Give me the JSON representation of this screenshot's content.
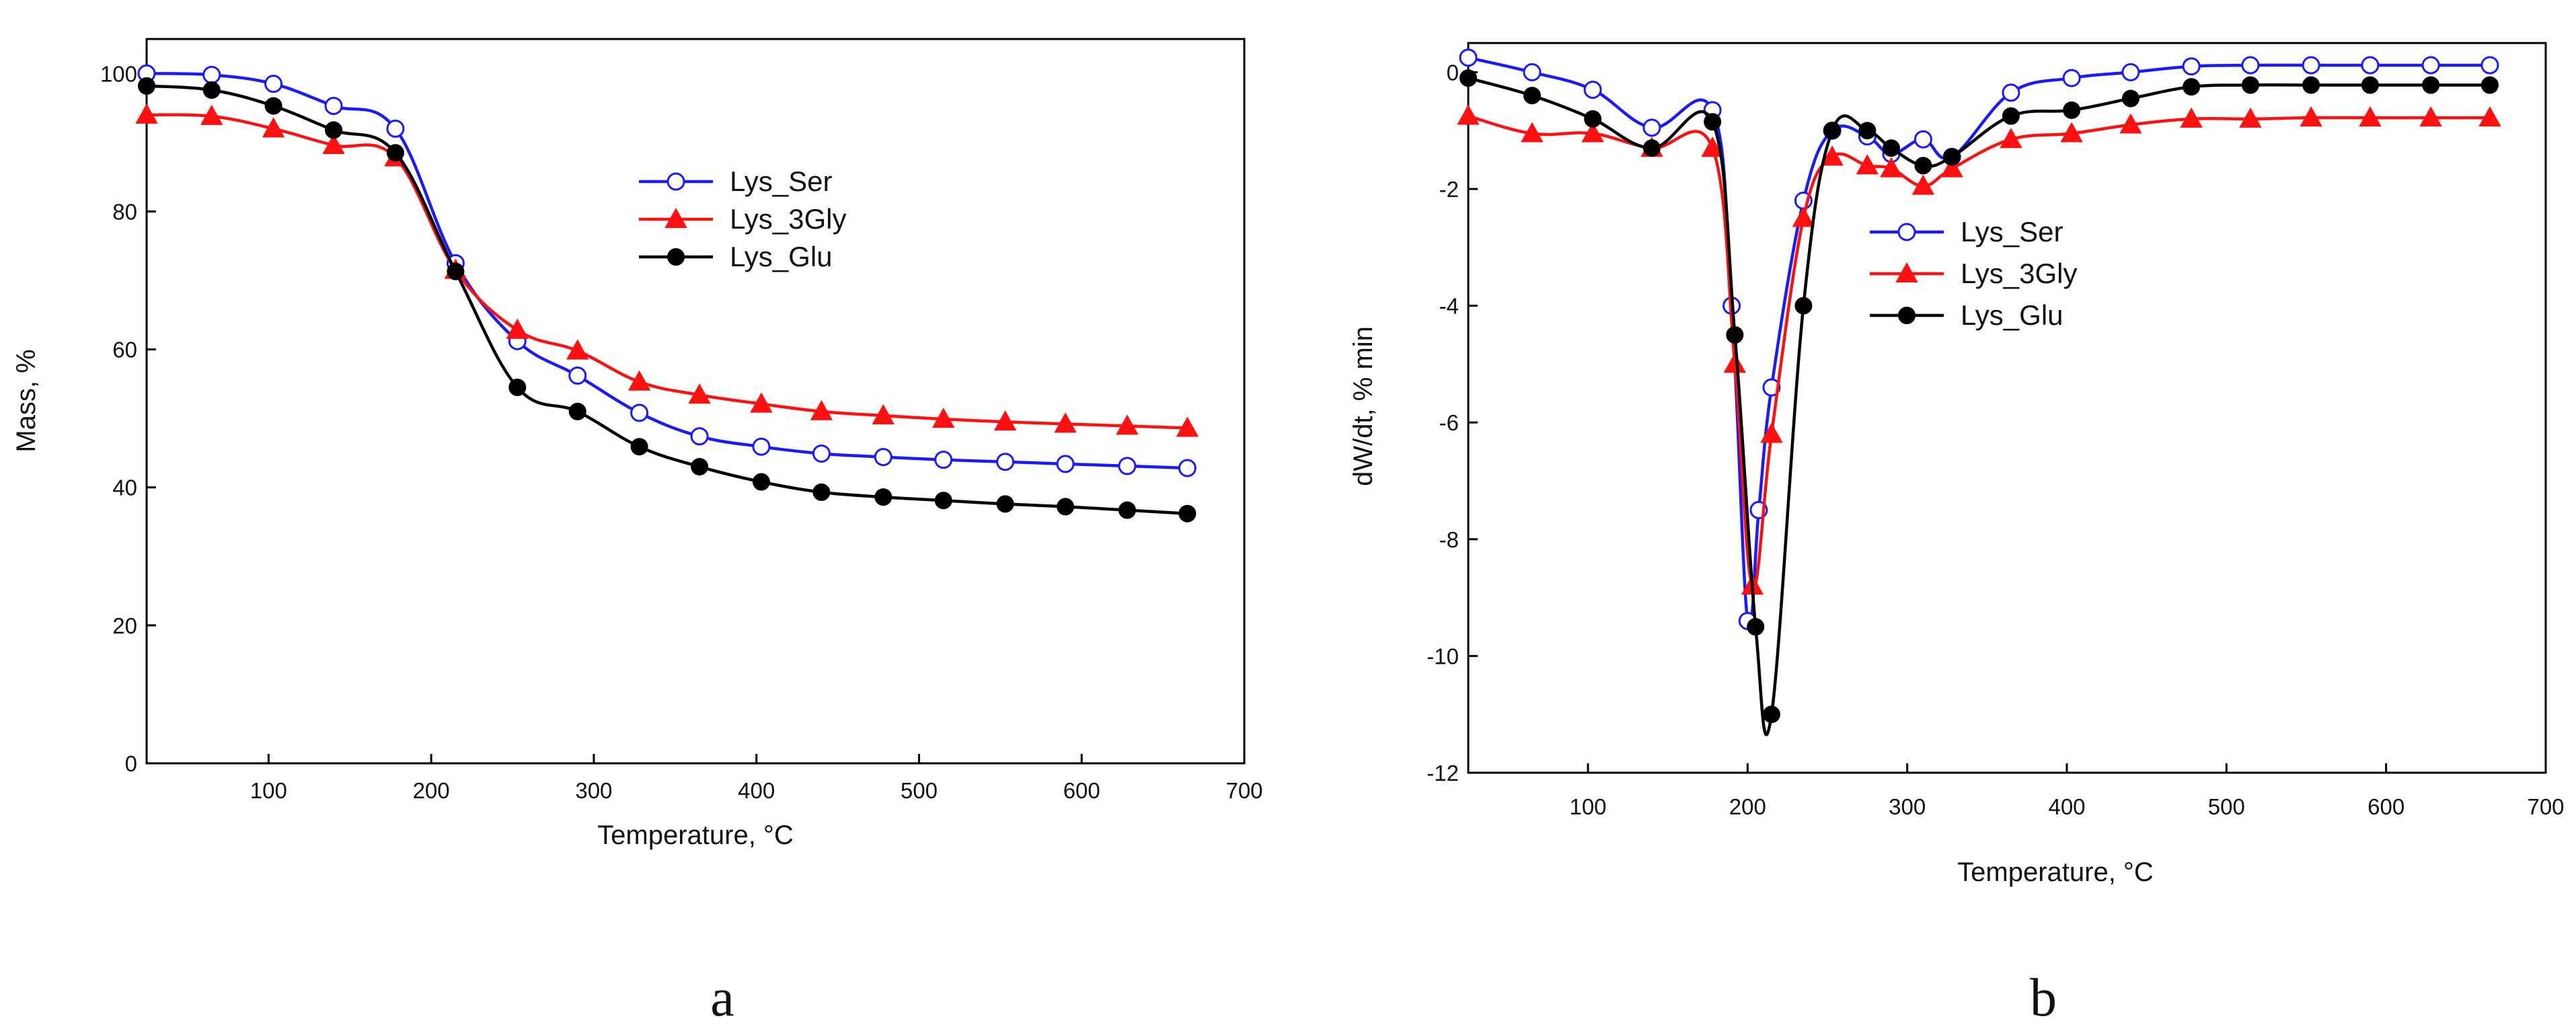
{
  "chart_data": [
    {
      "type": "line",
      "panel_label": "a",
      "title": "",
      "xlabel": "Temperature, °C",
      "ylabel": "Mass, %",
      "xlim": [
        25,
        700
      ],
      "ylim": [
        0,
        105
      ],
      "xticks": [
        100,
        200,
        300,
        400,
        500,
        600,
        700
      ],
      "yticks": [
        0,
        20,
        40,
        60,
        80,
        100
      ],
      "legend_position": "upper-right",
      "grid": false,
      "series": [
        {
          "name": "Lys_Ser",
          "color": "#1a1aff",
          "marker": "open-circle",
          "x": [
            25,
            65,
            103,
            140,
            178,
            215,
            253,
            290,
            328,
            365,
            403,
            440,
            478,
            515,
            553,
            590,
            628,
            665
          ],
          "y": [
            100,
            99.8,
            98.5,
            95.3,
            92.0,
            72.5,
            61.2,
            56.2,
            50.8,
            47.4,
            45.9,
            44.9,
            44.4,
            44.0,
            43.7,
            43.4,
            43.1,
            42.8
          ]
        },
        {
          "name": "Lys_3Gly",
          "color": "#ff1010",
          "marker": "filled-triangle",
          "x": [
            25,
            65,
            103,
            140,
            178,
            215,
            253,
            290,
            328,
            365,
            403,
            440,
            478,
            515,
            553,
            590,
            628,
            665
          ],
          "y": [
            94.0,
            93.8,
            92.0,
            89.6,
            87.8,
            71.5,
            62.8,
            59.8,
            55.3,
            53.4,
            52.1,
            51.0,
            50.4,
            49.9,
            49.5,
            49.2,
            48.9,
            48.6
          ]
        },
        {
          "name": "Lys_Glu",
          "color": "#000000",
          "marker": "filled-circle",
          "x": [
            25,
            65,
            103,
            140,
            178,
            215,
            253,
            290,
            328,
            365,
            403,
            440,
            478,
            515,
            553,
            590,
            628,
            665
          ],
          "y": [
            98.2,
            97.6,
            95.3,
            91.8,
            88.5,
            71.3,
            54.5,
            51.0,
            45.9,
            43.0,
            40.8,
            39.3,
            38.6,
            38.1,
            37.6,
            37.2,
            36.7,
            36.2
          ]
        }
      ]
    },
    {
      "type": "line",
      "panel_label": "b",
      "title": "",
      "xlabel": "Temperature, °C",
      "ylabel": "dW/dt, % min",
      "xlim": [
        25,
        700
      ],
      "ylim": [
        -12,
        0.5
      ],
      "xticks": [
        100,
        200,
        300,
        400,
        500,
        600,
        700
      ],
      "yticks": [
        -12,
        -10,
        -8,
        -6,
        -4,
        -2,
        0
      ],
      "legend_position": "center-right",
      "grid": false,
      "series": [
        {
          "name": "Lys_Ser",
          "color": "#1a1aff",
          "marker": "open-circle",
          "x": [
            25,
            65,
            103,
            140,
            178,
            190,
            200,
            207,
            215,
            235,
            253,
            275,
            290,
            310,
            328,
            365,
            403,
            440,
            478,
            515,
            553,
            590,
            628,
            665
          ],
          "y": [
            0.25,
            0.0,
            -0.3,
            -0.95,
            -0.65,
            -4.0,
            -9.4,
            -7.5,
            -5.4,
            -2.2,
            -1.0,
            -1.1,
            -1.4,
            -1.15,
            -1.45,
            -0.35,
            -0.1,
            0.0,
            0.1,
            0.12,
            0.12,
            0.12,
            0.12,
            0.12
          ]
        },
        {
          "name": "Lys_3Gly",
          "color": "#ff1010",
          "marker": "filled-triangle",
          "x": [
            25,
            65,
            103,
            140,
            178,
            192,
            203,
            215,
            235,
            253,
            275,
            290,
            310,
            328,
            365,
            403,
            440,
            478,
            515,
            553,
            590,
            628,
            665
          ],
          "y": [
            -0.75,
            -1.05,
            -1.05,
            -1.3,
            -1.3,
            -5.0,
            -8.8,
            -6.2,
            -2.5,
            -1.45,
            -1.6,
            -1.65,
            -1.95,
            -1.65,
            -1.15,
            -1.05,
            -0.9,
            -0.8,
            -0.8,
            -0.78,
            -0.78,
            -0.78,
            -0.78
          ]
        },
        {
          "name": "Lys_Glu",
          "color": "#000000",
          "marker": "filled-circle",
          "x": [
            25,
            65,
            103,
            140,
            178,
            192,
            205,
            215,
            235,
            253,
            275,
            290,
            310,
            328,
            365,
            403,
            440,
            478,
            515,
            553,
            590,
            628,
            665
          ],
          "y": [
            -0.1,
            -0.4,
            -0.8,
            -1.3,
            -0.85,
            -4.5,
            -9.5,
            -11.0,
            -4.0,
            -1.0,
            -1.0,
            -1.3,
            -1.6,
            -1.45,
            -0.75,
            -0.65,
            -0.45,
            -0.25,
            -0.22,
            -0.22,
            -0.22,
            -0.22,
            -0.22
          ]
        }
      ]
    }
  ]
}
